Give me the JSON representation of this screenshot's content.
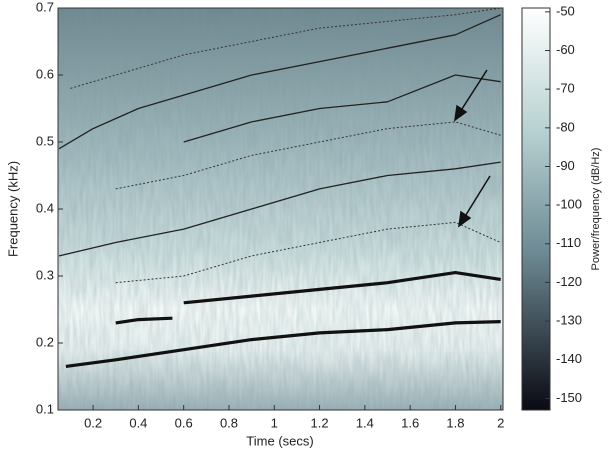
{
  "chart_data": {
    "type": "spectrogram",
    "xlabel": "Time (secs)",
    "ylabel": "Frequency (kHz)",
    "colorbar_label": "Power/frequency (dB/Hz)",
    "xlim": [
      0.045,
      2.01
    ],
    "ylim": [
      0.1,
      0.7
    ],
    "xticks": [
      0.2,
      0.4,
      0.6,
      0.8,
      1,
      1.2,
      1.4,
      1.6,
      1.8,
      2
    ],
    "yticks": [
      0.1,
      0.2,
      0.3,
      0.4,
      0.5,
      0.6,
      0.7
    ],
    "clim": [
      -153,
      -49
    ],
    "cticks": [
      -50,
      -60,
      -70,
      -80,
      -90,
      -100,
      -110,
      -120,
      -130,
      -140,
      -150
    ],
    "series": [
      {
        "style": "thick",
        "color": "#111111",
        "x": [
          0.08,
          0.3,
          0.6,
          0.9,
          1.2,
          1.5,
          1.8,
          2.0
        ],
        "values": [
          0.165,
          0.175,
          0.19,
          0.205,
          0.215,
          0.22,
          0.23,
          0.232
        ]
      },
      {
        "style": "thick",
        "color": "#111111",
        "x": [
          0.6,
          0.9,
          1.2,
          1.5,
          1.8,
          2.0
        ],
        "values": [
          0.26,
          0.27,
          0.28,
          0.29,
          0.305,
          0.295
        ]
      },
      {
        "style": "thick",
        "color": "#111111",
        "x": [
          0.3,
          0.4,
          0.55
        ],
        "values": [
          0.23,
          0.235,
          0.237
        ]
      },
      {
        "style": "thin",
        "color": "#222222",
        "x": [
          0.05,
          0.3,
          0.6,
          0.9,
          1.2,
          1.5,
          1.8,
          2.0
        ],
        "values": [
          0.33,
          0.35,
          0.37,
          0.4,
          0.43,
          0.45,
          0.46,
          0.47
        ]
      },
      {
        "style": "thin",
        "color": "#222222",
        "x": [
          0.05,
          0.2,
          0.4,
          0.6,
          0.9,
          1.2,
          1.5,
          1.8,
          2.0
        ],
        "values": [
          0.49,
          0.52,
          0.55,
          0.57,
          0.6,
          0.62,
          0.64,
          0.66,
          0.69
        ]
      },
      {
        "style": "thin",
        "color": "#222222",
        "x": [
          0.6,
          0.9,
          1.2,
          1.5,
          1.8,
          2.0
        ],
        "values": [
          0.5,
          0.53,
          0.55,
          0.56,
          0.6,
          0.59
        ]
      },
      {
        "style": "dotted",
        "color": "#333333",
        "x": [
          0.3,
          0.6,
          0.9,
          1.2,
          1.5,
          1.8,
          2.0
        ],
        "values": [
          0.29,
          0.3,
          0.33,
          0.35,
          0.37,
          0.38,
          0.35
        ]
      },
      {
        "style": "dotted",
        "color": "#333333",
        "x": [
          0.3,
          0.6,
          0.9,
          1.2,
          1.5,
          1.8,
          2.0
        ],
        "values": [
          0.43,
          0.45,
          0.48,
          0.5,
          0.52,
          0.53,
          0.51
        ]
      },
      {
        "style": "dotted",
        "color": "#333333",
        "x": [
          0.1,
          0.3,
          0.6,
          0.9,
          1.2,
          1.5,
          1.8,
          2.0
        ],
        "values": [
          0.58,
          0.6,
          0.63,
          0.65,
          0.67,
          0.68,
          0.69,
          0.7
        ]
      }
    ]
  }
}
